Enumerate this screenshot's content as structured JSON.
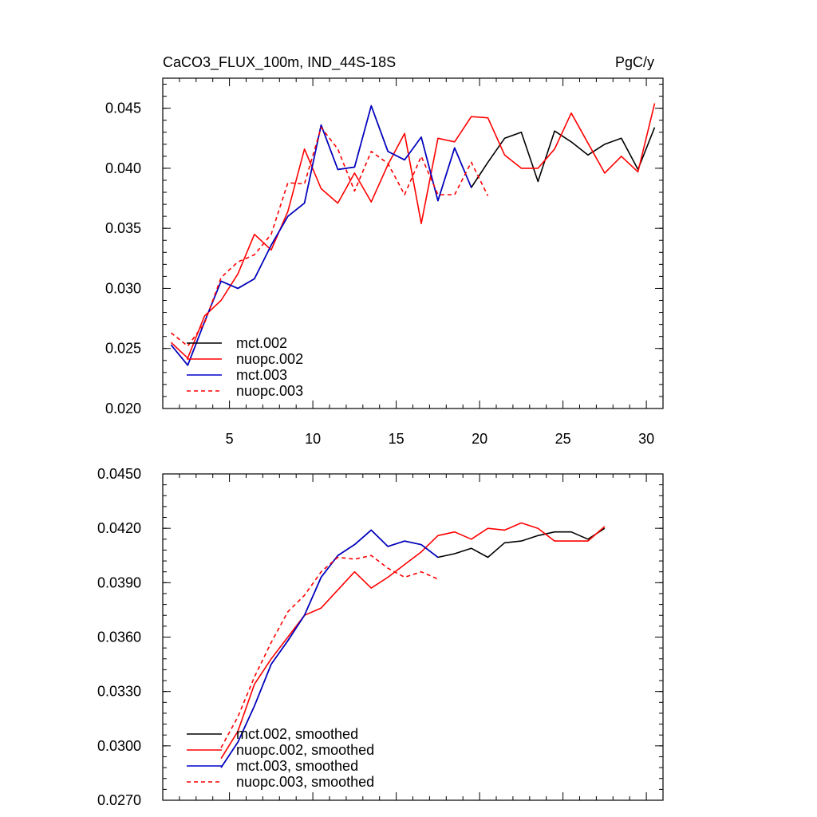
{
  "chart_data": [
    {
      "type": "line",
      "title": "CaCO3_FLUX_100m, IND_44S-18S",
      "units": "PgC/y",
      "xlim": [
        1,
        31
      ],
      "ylim": [
        0.02,
        0.0475
      ],
      "xticks": [
        5,
        10,
        15,
        20,
        25,
        30
      ],
      "yticks": [
        0.02,
        0.025,
        0.03,
        0.035,
        0.04,
        0.045
      ],
      "ytick_labels": [
        "0.020",
        "0.025",
        "0.030",
        "0.035",
        "0.040",
        "0.045"
      ],
      "grid": false,
      "legend_position": "bottom-left",
      "series": [
        {
          "name": "mct.002",
          "color": "#000000",
          "dash": "solid",
          "x": [
            1.5,
            2.5,
            3.5,
            4.5,
            5.5,
            6.5,
            7.5,
            8.5,
            9.5,
            10.5,
            11.5,
            12.5,
            13.5,
            14.5,
            15.5,
            16.5,
            17.5,
            18.5,
            19.5,
            20.5,
            21.5,
            22.5,
            23.5,
            24.5,
            25.5,
            26.5,
            27.5,
            28.5,
            29.5,
            30.5
          ],
          "values": [
            0.0253,
            0.0236,
            0.0272,
            0.0306,
            0.03,
            0.0308,
            0.0336,
            0.036,
            0.0371,
            0.0436,
            0.0399,
            0.0401,
            0.0452,
            0.0414,
            0.0407,
            0.0426,
            0.0373,
            0.0417,
            0.0384,
            0.0405,
            0.0425,
            0.043,
            0.0389,
            0.0431,
            0.0422,
            0.0411,
            0.042,
            0.0425,
            0.0399,
            0.0434
          ]
        },
        {
          "name": "nuopc.002",
          "color": "#ff0000",
          "dash": "solid",
          "x": [
            1.5,
            2.5,
            3.5,
            4.5,
            5.5,
            6.5,
            7.5,
            8.5,
            9.5,
            10.5,
            11.5,
            12.5,
            13.5,
            14.5,
            15.5,
            16.5,
            17.5,
            18.5,
            19.5,
            20.5,
            21.5,
            22.5,
            23.5,
            24.5,
            25.5,
            26.5,
            27.5,
            28.5,
            29.5,
            30.5
          ],
          "values": [
            0.0255,
            0.0242,
            0.0277,
            0.029,
            0.0312,
            0.0345,
            0.0332,
            0.0364,
            0.0416,
            0.0383,
            0.0371,
            0.0396,
            0.0372,
            0.0403,
            0.0429,
            0.0354,
            0.0425,
            0.0422,
            0.0443,
            0.0442,
            0.0411,
            0.04,
            0.04,
            0.0416,
            0.0446,
            0.0421,
            0.0396,
            0.041,
            0.0397,
            0.0454
          ]
        },
        {
          "name": "mct.003",
          "color": "#0000cc",
          "dash": "solid",
          "x": [
            1.5,
            2.5,
            3.5,
            4.5,
            5.5,
            6.5,
            7.5,
            8.5,
            9.5,
            10.5,
            11.5,
            12.5,
            13.5,
            14.5,
            15.5,
            16.5,
            17.5,
            18.5,
            19.5
          ],
          "values": [
            0.0253,
            0.0236,
            0.0272,
            0.0306,
            0.03,
            0.0308,
            0.0336,
            0.036,
            0.0371,
            0.0436,
            0.0399,
            0.0401,
            0.0452,
            0.0414,
            0.0407,
            0.0426,
            0.0373,
            0.0417,
            0.0384
          ]
        },
        {
          "name": "nuopc.003",
          "color": "#ff0000",
          "dash": "dashed",
          "x": [
            1.5,
            2.5,
            3.5,
            4.5,
            5.5,
            6.5,
            7.5,
            8.5,
            9.5,
            10.5,
            11.5,
            12.5,
            13.5,
            14.5,
            15.5,
            16.5,
            17.5,
            18.5,
            19.5,
            20.5
          ],
          "values": [
            0.0263,
            0.0252,
            0.0271,
            0.0309,
            0.0322,
            0.0328,
            0.0345,
            0.0388,
            0.0387,
            0.0434,
            0.0416,
            0.0381,
            0.0414,
            0.0404,
            0.0378,
            0.041,
            0.0378,
            0.0378,
            0.0405,
            0.0377
          ]
        }
      ]
    },
    {
      "type": "line",
      "xlim": [
        1,
        31
      ],
      "ylim": [
        0.027,
        0.045
      ],
      "xticks": [
        5,
        10,
        15,
        20,
        25,
        30
      ],
      "yticks": [
        0.027,
        0.03,
        0.033,
        0.036,
        0.039,
        0.042,
        0.045
      ],
      "ytick_labels": [
        "0.0270",
        "0.0300",
        "0.0330",
        "0.0360",
        "0.0390",
        "0.0420",
        "0.0450"
      ],
      "grid": false,
      "legend_position": "bottom-left",
      "series": [
        {
          "name": "mct.002, smoothed",
          "color": "#000000",
          "dash": "solid",
          "x": [
            4.5,
            5.5,
            6.5,
            7.5,
            8.5,
            9.5,
            10.5,
            11.5,
            12.5,
            13.5,
            14.5,
            15.5,
            16.5,
            17.5,
            18.5,
            19.5,
            20.5,
            21.5,
            22.5,
            23.5,
            24.5,
            25.5,
            26.5,
            27.5
          ],
          "values": [
            0.0288,
            0.0302,
            0.0322,
            0.0345,
            0.0358,
            0.0372,
            0.0393,
            0.0405,
            0.0411,
            0.0419,
            0.041,
            0.0413,
            0.0411,
            0.0404,
            0.0406,
            0.0409,
            0.0404,
            0.0412,
            0.0413,
            0.0416,
            0.0418,
            0.0418,
            0.0414,
            0.042
          ]
        },
        {
          "name": "nuopc.002, smoothed",
          "color": "#ff0000",
          "dash": "solid",
          "x": [
            4.5,
            5.5,
            6.5,
            7.5,
            8.5,
            9.5,
            10.5,
            11.5,
            12.5,
            13.5,
            14.5,
            15.5,
            16.5,
            17.5,
            18.5,
            19.5,
            20.5,
            21.5,
            22.5,
            23.5,
            24.5,
            25.5,
            26.5,
            27.5
          ],
          "values": [
            0.0293,
            0.0308,
            0.0334,
            0.0348,
            0.036,
            0.0372,
            0.0376,
            0.0386,
            0.0396,
            0.0387,
            0.0393,
            0.04,
            0.0407,
            0.0416,
            0.0418,
            0.0414,
            0.042,
            0.0419,
            0.0423,
            0.042,
            0.0413,
            0.0413,
            0.0413,
            0.0421
          ]
        },
        {
          "name": "mct.003, smoothed",
          "color": "#0000cc",
          "dash": "solid",
          "x": [
            4.5,
            5.5,
            6.5,
            7.5,
            8.5,
            9.5,
            10.5,
            11.5,
            12.5,
            13.5,
            14.5,
            15.5,
            16.5,
            17.5
          ],
          "values": [
            0.0288,
            0.0302,
            0.0322,
            0.0345,
            0.0358,
            0.0372,
            0.0393,
            0.0405,
            0.0411,
            0.0419,
            0.041,
            0.0413,
            0.0411,
            0.0404
          ]
        },
        {
          "name": "nuopc.003, smoothed",
          "color": "#ff0000",
          "dash": "dashed",
          "x": [
            4.5,
            5.5,
            6.5,
            7.5,
            8.5,
            9.5,
            10.5,
            11.5,
            12.5,
            13.5,
            14.5,
            15.5,
            16.5,
            17.5
          ],
          "values": [
            0.0299,
            0.0316,
            0.0338,
            0.0357,
            0.0374,
            0.0383,
            0.0396,
            0.0404,
            0.0403,
            0.0405,
            0.0398,
            0.0393,
            0.0396,
            0.0392
          ]
        }
      ]
    }
  ]
}
